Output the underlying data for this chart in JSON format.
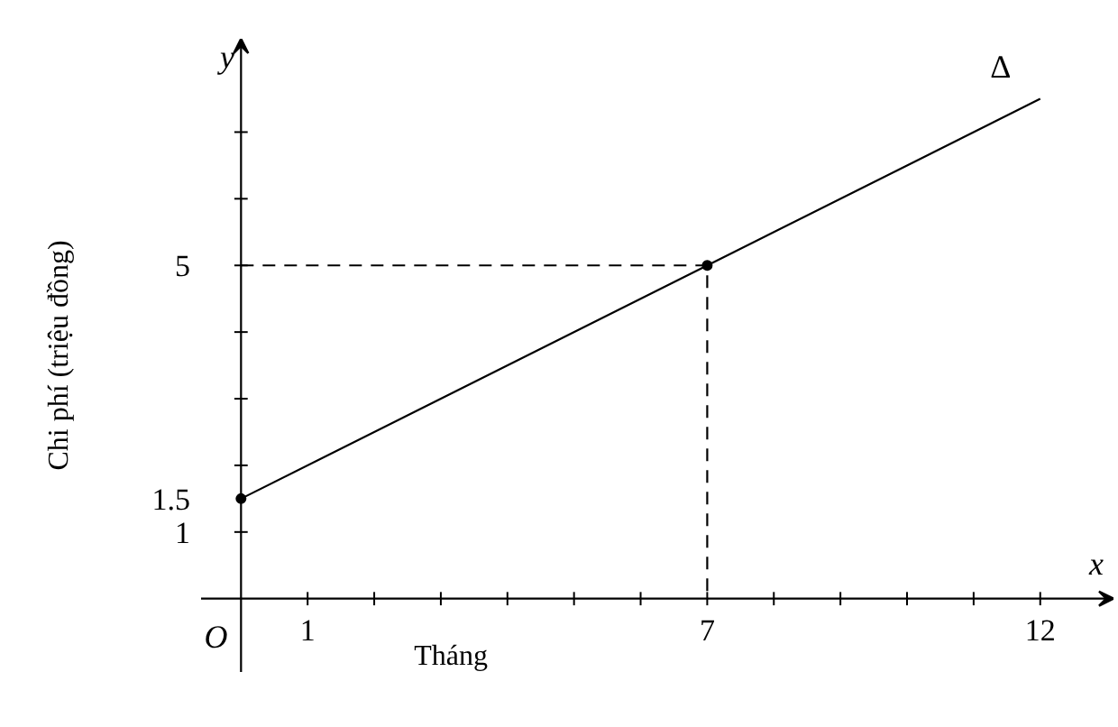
{
  "chart_data": {
    "type": "line",
    "xlabel": "Tháng",
    "ylabel": "Chi phí (triệu đồng)",
    "xlim": [
      -0.6,
      13.1
    ],
    "ylim": [
      -1.1,
      8.4
    ],
    "xticks": [
      {
        "value": 1,
        "label": "1"
      },
      {
        "value": 2,
        "label": null
      },
      {
        "value": 3,
        "label": null
      },
      {
        "value": 4,
        "label": null
      },
      {
        "value": 5,
        "label": null
      },
      {
        "value": 6,
        "label": null
      },
      {
        "value": 7,
        "label": "7"
      },
      {
        "value": 8,
        "label": null
      },
      {
        "value": 9,
        "label": null
      },
      {
        "value": 10,
        "label": null
      },
      {
        "value": 11,
        "label": null
      },
      {
        "value": 12,
        "label": "12"
      }
    ],
    "yticks": [
      {
        "value": 1,
        "label": "1"
      },
      {
        "value": 1.5,
        "label": "1.5"
      },
      {
        "value": 2,
        "label": null
      },
      {
        "value": 3,
        "label": null
      },
      {
        "value": 4,
        "label": null
      },
      {
        "value": 5,
        "label": "5"
      },
      {
        "value": 6,
        "label": null
      },
      {
        "value": 7,
        "label": null
      }
    ],
    "series": [
      {
        "color": "#000000",
        "x": [
          0,
          12
        ],
        "values": [
          1.5,
          7.5
        ],
        "line_style": "solid"
      },
      {
        "type": "line",
        "color": "#000000",
        "x": [
          0,
          7,
          7
        ],
        "values": [
          5,
          5,
          0
        ],
        "line_style": "dashed"
      },
      {
        "type": "scatter",
        "color": "#000000",
        "x": [
          0,
          7
        ],
        "values": [
          1.5,
          5
        ],
        "marker": "circle"
      }
    ],
    "annotations": [
      {
        "text": "Δ",
        "x": 12,
        "y": 7.5
      },
      "x",
      "y",
      "O"
    ],
    "grid": false
  }
}
